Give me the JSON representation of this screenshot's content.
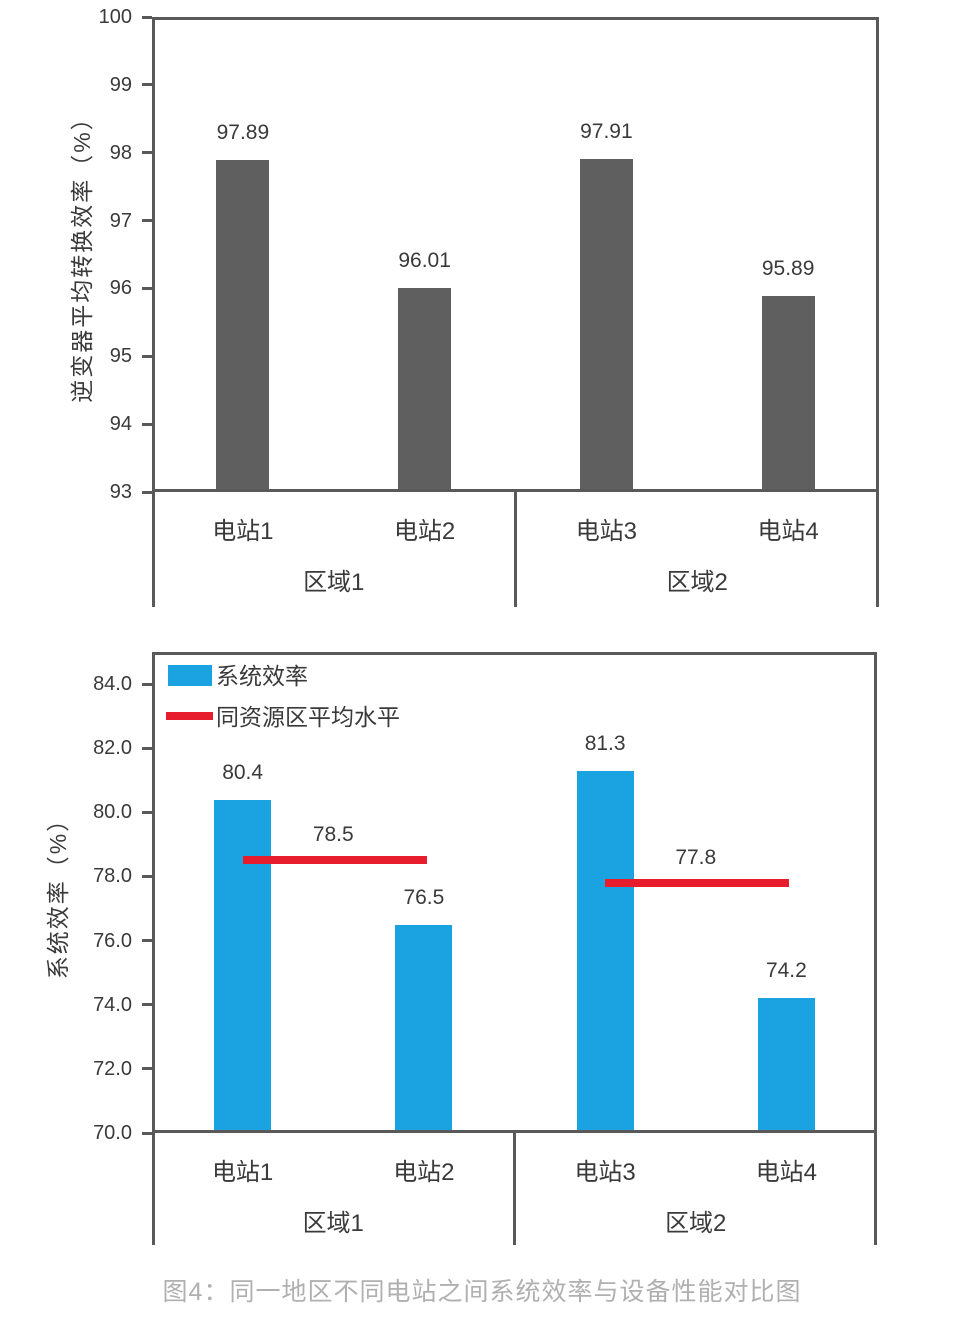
{
  "caption": {
    "text": "图4：同一地区不同电站之间系统效率与设备性能对比图",
    "color": "#b0b0b0"
  },
  "colors": {
    "axis": "#595959",
    "bar_gray": "#5f5f5f",
    "bar_blue": "#1ba3e1",
    "line_red": "#e71c2c",
    "text": "#3a3a3a"
  },
  "chart_data": [
    {
      "id": "inverter-efficiency",
      "type": "bar",
      "title": "",
      "ylabel": "逆变器平均转换效率（%）",
      "ylim": [
        93,
        100
      ],
      "yticks": [
        "100",
        "99",
        "98",
        "97",
        "96",
        "95",
        "94",
        "93"
      ],
      "categories": [
        "电站1",
        "电站2",
        "电站3",
        "电站4"
      ],
      "group_labels": [
        "区域1",
        "区域2"
      ],
      "values": [
        97.89,
        96.01,
        97.91,
        95.89
      ],
      "value_labels": [
        "97.89",
        "96.01",
        "97.91",
        "95.89"
      ],
      "bar_color": "#5f5f5f",
      "grid": false,
      "legend": null
    },
    {
      "id": "system-efficiency",
      "type": "bar",
      "title": "",
      "ylabel": "系统效率（%）",
      "ylim": [
        70,
        85
      ],
      "yticks": [
        "84.0",
        "82.0",
        "80.0",
        "78.0",
        "76.0",
        "74.0",
        "72.0",
        "70.0"
      ],
      "categories": [
        "电站1",
        "电站2",
        "电站3",
        "电站4"
      ],
      "group_labels": [
        "区域1",
        "区域2"
      ],
      "grid": false,
      "legend_position": "top-left-inside",
      "series": [
        {
          "name": "系统效率",
          "type": "bar",
          "color": "#1ba3e1",
          "values": [
            80.4,
            76.5,
            81.3,
            74.2
          ],
          "value_labels": [
            "80.4",
            "76.5",
            "81.3",
            "74.2"
          ]
        },
        {
          "name": "同资源区平均水平",
          "type": "line",
          "color": "#e71c2c",
          "segments": [
            {
              "from_category": 0,
              "to_category": 1,
              "value": 78.5,
              "label": "78.5"
            },
            {
              "from_category": 2,
              "to_category": 3,
              "value": 77.8,
              "label": "77.8"
            }
          ]
        }
      ]
    }
  ]
}
